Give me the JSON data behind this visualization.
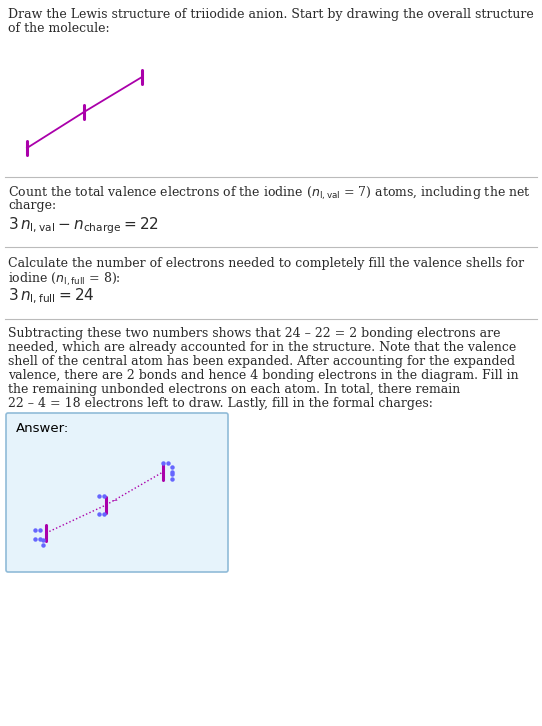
{
  "iodine_color": "#AA00AA",
  "dot_color": "#6666FF",
  "answer_bg": "#E6F3FB",
  "answer_border": "#90BBD8",
  "line_color": "#BBBBBB",
  "text_color": "#2A2A2A",
  "figwidth": 5.42,
  "figheight": 7.26,
  "dpi": 100,
  "title_line1": "Draw the Lewis structure of triiodide anion. Start by drawing the overall structure",
  "title_line2": "of the molecule:",
  "s1_line1": "Count the total valence electrons of the iodine (",
  "s1_line2": "charge:",
  "s2_line1": "Calculate the number of electrons needed to completely fill the valence shells for",
  "s2_line2_pre": "iodine (",
  "s3_lines": [
    "Subtracting these two numbers shows that 24 – 22 = 2 bonding electrons are",
    "needed, which are already accounted for in the structure. Note that the valence",
    "shell of the central atom has been expanded. After accounting for the expanded",
    "valence, there are 2 bonds and hence 4 bonding electrons in the diagram. Fill in",
    "the remaining unbonded electrons on each atom. In total, there remain",
    "22 – 4 = 18 electrons left to draw. Lastly, fill in the formal charges:"
  ],
  "answer_label": "Answer:",
  "font_size_body": 9.0,
  "font_size_eq": 11.0,
  "font_size_answer": 9.5
}
